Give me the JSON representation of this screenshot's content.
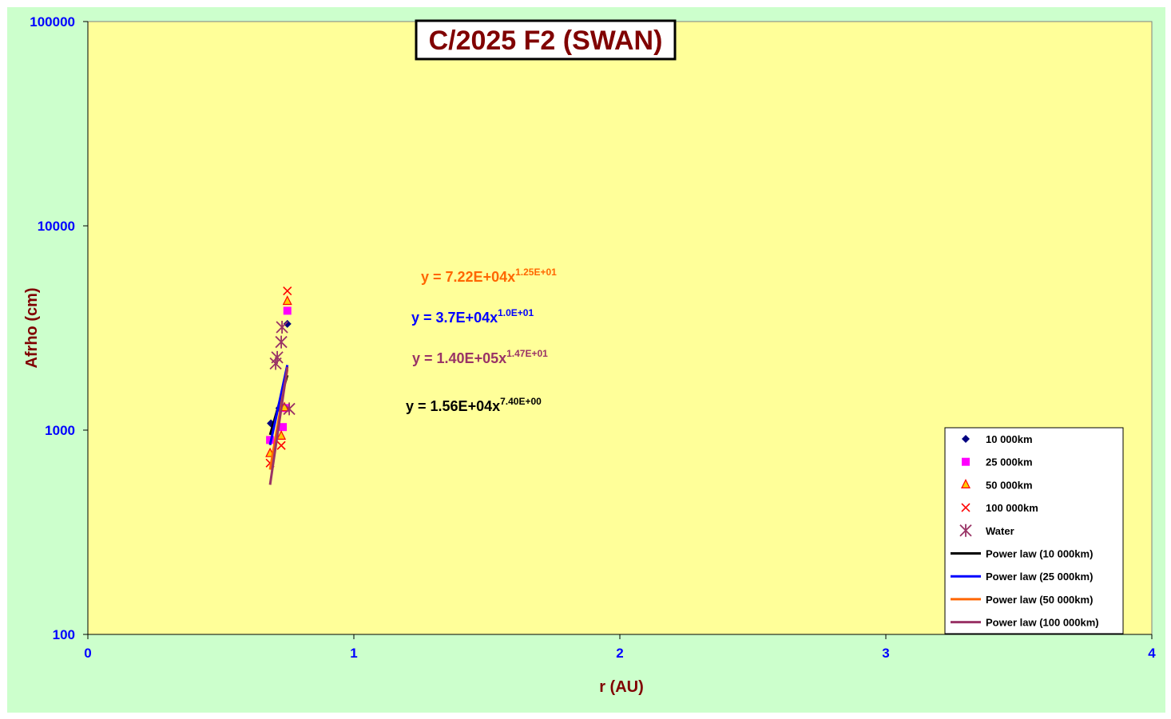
{
  "chart_data": {
    "type": "scatter",
    "title": "C/2025 F2 (SWAN)",
    "xlabel": "r (AU)",
    "ylabel": "Afrho (cm)",
    "xlim": [
      0,
      4
    ],
    "ylim": [
      100,
      100000
    ],
    "yscale": "log",
    "xticks": [
      0,
      1,
      2,
      3,
      4
    ],
    "yticks": [
      100,
      1000,
      10000,
      100000
    ],
    "legend": "lower right",
    "series": [
      {
        "name": "10 000km",
        "type": "scatter",
        "marker": "diamond",
        "color": "#000080",
        "x": [
          0.688,
          0.72,
          0.75
        ],
        "values": [
          1080,
          1280,
          3310
        ]
      },
      {
        "name": "25 000km",
        "type": "scatter",
        "marker": "square",
        "color": "#ff00ff",
        "x": [
          0.685,
          0.733,
          0.745,
          0.75
        ],
        "values": [
          895,
          1035,
          1283,
          3840
        ]
      },
      {
        "name": "50 000km",
        "type": "scatter",
        "marker": "triangle",
        "color": "#ffcc00",
        "x": [
          0.685,
          0.727,
          0.739,
          0.75
        ],
        "values": [
          769,
          936,
          1290,
          4275
        ]
      },
      {
        "name": "100 000km",
        "type": "scatter",
        "marker": "x",
        "color": "#ff0000",
        "x": [
          0.685,
          0.727,
          0.757,
          0.75
        ],
        "values": [
          690,
          841,
          1270,
          4800
        ]
      },
      {
        "name": "Water",
        "type": "scatter",
        "marker": "asterisk",
        "color": "#993366",
        "x": [
          0.706,
          0.712,
          0.727,
          0.73,
          0.757
        ],
        "values": [
          2120,
          2270,
          2700,
          3190,
          1270
        ]
      },
      {
        "name": "Power law (10 000km)",
        "type": "line",
        "color": "#000000",
        "x": [
          0.685,
          0.75
        ],
        "values": [
          948,
          1857
        ]
      },
      {
        "name": "Power law (25 000km)",
        "type": "line",
        "color": "#0000ff",
        "x": [
          0.685,
          0.75
        ],
        "values": [
          845,
          2083
        ]
      },
      {
        "name": "Power law (50 000km)",
        "type": "line",
        "color": "#ff6600",
        "x": [
          0.685,
          0.75
        ],
        "values": [
          641,
          1981
        ]
      },
      {
        "name": "Power law (100 000km)",
        "type": "line",
        "color": "#993366",
        "x": [
          0.685,
          0.75
        ],
        "values": [
          540,
          2040
        ]
      }
    ],
    "annotations": [
      {
        "text": "y = 7.22E+04x",
        "exponent": "1.25E+01",
        "color": "#ff6600"
      },
      {
        "text": "y = 3.7E+04x",
        "exponent": "1.0E+01",
        "color": "#0000ff"
      },
      {
        "text": "y = 1.40E+05x",
        "exponent": "1.47E+01",
        "color": "#993366"
      },
      {
        "text": "y = 1.56E+04x",
        "exponent": "7.40E+00",
        "color": "#000000"
      }
    ]
  }
}
